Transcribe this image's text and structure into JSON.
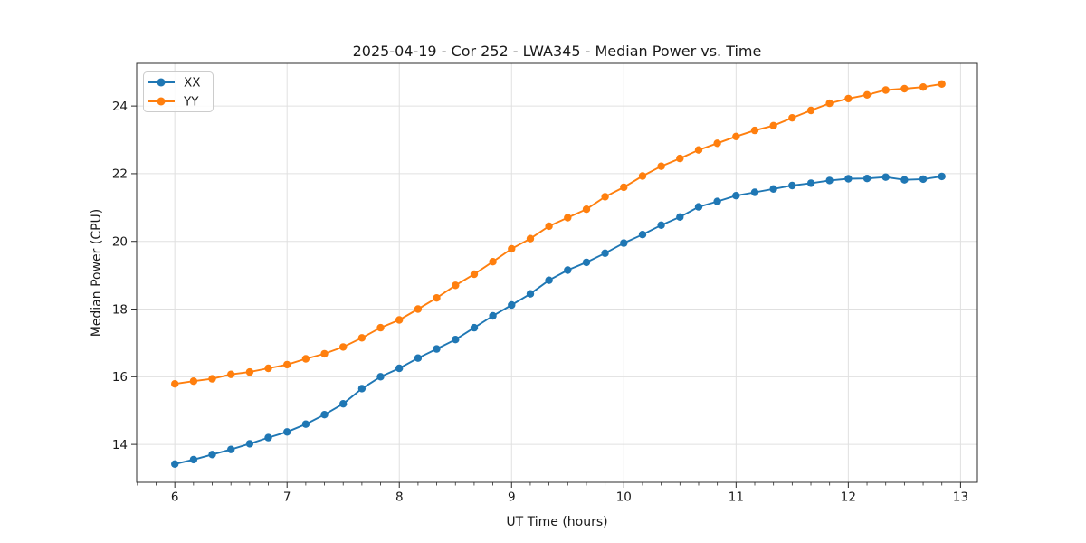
{
  "figure": {
    "background": "#ffffff",
    "text_color": "#1a1a1a",
    "spine_color": "#2b2b2b",
    "grid_color": "#e0e0e0"
  },
  "chart_data": {
    "type": "line",
    "title": "2025-04-19 - Cor 252 - LWA345 - Median Power vs. Time",
    "xlabel": "UT Time (hours)",
    "ylabel": "Median Power (CPU)",
    "xlim": [
      5.66,
      13.15
    ],
    "ylim": [
      12.88,
      25.26
    ],
    "x_major_ticks": [
      6,
      7,
      8,
      9,
      10,
      11,
      12,
      13
    ],
    "y_major_ticks": [
      14,
      16,
      18,
      20,
      22,
      24
    ],
    "x_minor_step": 0.1666667,
    "grid": true,
    "legend_position": "upper-left",
    "marker": "circle",
    "x": [
      6.0,
      6.167,
      6.333,
      6.5,
      6.667,
      6.833,
      7.0,
      7.167,
      7.333,
      7.5,
      7.667,
      7.833,
      8.0,
      8.167,
      8.333,
      8.5,
      8.667,
      8.833,
      9.0,
      9.167,
      9.333,
      9.5,
      9.667,
      9.833,
      10.0,
      10.167,
      10.333,
      10.5,
      10.667,
      10.833,
      11.0,
      11.167,
      11.333,
      11.5,
      11.667,
      11.833,
      12.0,
      12.167,
      12.333,
      12.5,
      12.667,
      12.833
    ],
    "series": [
      {
        "name": "XX",
        "color": "#1f77b4",
        "values": [
          13.42,
          13.55,
          13.7,
          13.85,
          14.02,
          14.2,
          14.37,
          14.6,
          14.88,
          15.2,
          15.65,
          16.0,
          16.25,
          16.55,
          16.82,
          17.1,
          17.45,
          17.8,
          18.12,
          18.45,
          18.85,
          19.15,
          19.38,
          19.65,
          19.95,
          20.2,
          20.48,
          20.72,
          21.02,
          21.18,
          21.35,
          21.45,
          21.55,
          21.65,
          21.72,
          21.8,
          21.85,
          21.86,
          21.9,
          21.82,
          21.84,
          21.92
        ]
      },
      {
        "name": "YY",
        "color": "#ff7f0e",
        "values": [
          15.79,
          15.87,
          15.94,
          16.07,
          16.14,
          16.25,
          16.36,
          16.53,
          16.68,
          16.88,
          17.15,
          17.45,
          17.68,
          18.0,
          18.33,
          18.7,
          19.03,
          19.4,
          19.78,
          20.08,
          20.45,
          20.7,
          20.95,
          21.32,
          21.6,
          21.93,
          22.22,
          22.45,
          22.7,
          22.9,
          23.1,
          23.28,
          23.42,
          23.65,
          23.87,
          24.08,
          24.22,
          24.33,
          24.47,
          24.51,
          24.56,
          24.65
        ]
      }
    ]
  }
}
